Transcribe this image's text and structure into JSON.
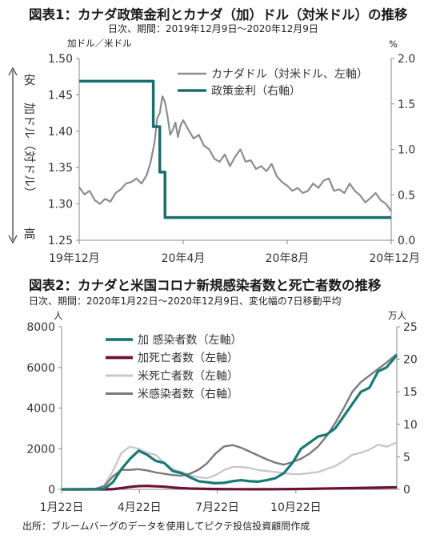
{
  "chart_data": [
    {
      "type": "line",
      "title": "図表1：カナダ政策金利とカナダ（加）ドル（対米ドル）の推移",
      "subtitle": "日次、期間：2019年12月9日～2020年12月9日",
      "left_unit": "加ドル／米ドル",
      "right_unit": "%",
      "y_side_label": "加ドル（対ドル）",
      "y_top_label": "安",
      "y_bottom_label": "高",
      "ylim_left": [
        1.25,
        1.5
      ],
      "ylim_right": [
        0.0,
        2.0
      ],
      "yticks_left": [
        "1.50",
        "1.45",
        "1.40",
        "1.35",
        "1.30",
        "1.25"
      ],
      "yticks_right": [
        "2.0",
        "1.5",
        "1.0",
        "0.5",
        "0.0"
      ],
      "x_tick_labels": [
        "19年12月",
        "20年4月",
        "20年8月",
        "20年12月"
      ],
      "x_ticks_month": [
        0,
        4,
        8,
        12
      ],
      "legend_placement": "top-right",
      "grid": false,
      "series": [
        {
          "name": "カナダドル（対米ドル、左軸）",
          "axis": "left",
          "color": "#8c8c8c",
          "x_month": [
            0.0,
            0.2,
            0.4,
            0.6,
            0.8,
            1.0,
            1.2,
            1.4,
            1.6,
            1.8,
            2.0,
            2.2,
            2.4,
            2.6,
            2.75,
            2.9,
            3.0,
            3.1,
            3.2,
            3.3,
            3.4,
            3.5,
            3.6,
            3.7,
            3.8,
            3.9,
            4.0,
            4.2,
            4.4,
            4.6,
            4.8,
            5.0,
            5.2,
            5.4,
            5.6,
            5.8,
            6.0,
            6.2,
            6.4,
            6.6,
            6.8,
            7.0,
            7.2,
            7.4,
            7.6,
            7.8,
            8.0,
            8.2,
            8.4,
            8.6,
            8.8,
            9.0,
            9.2,
            9.4,
            9.6,
            9.8,
            10.0,
            10.2,
            10.4,
            10.6,
            10.8,
            11.0,
            11.2,
            11.4,
            11.6,
            11.8,
            12.0
          ],
          "values": [
            1.323,
            1.313,
            1.318,
            1.305,
            1.3,
            1.307,
            1.303,
            1.315,
            1.32,
            1.328,
            1.33,
            1.335,
            1.328,
            1.34,
            1.358,
            1.385,
            1.418,
            1.425,
            1.448,
            1.44,
            1.42,
            1.395,
            1.402,
            1.412,
            1.392,
            1.408,
            1.415,
            1.402,
            1.39,
            1.395,
            1.38,
            1.375,
            1.362,
            1.358,
            1.368,
            1.352,
            1.365,
            1.375,
            1.358,
            1.36,
            1.348,
            1.352,
            1.345,
            1.355,
            1.338,
            1.33,
            1.325,
            1.318,
            1.322,
            1.315,
            1.318,
            1.328,
            1.322,
            1.332,
            1.335,
            1.318,
            1.32,
            1.315,
            1.328,
            1.318,
            1.312,
            1.302,
            1.308,
            1.315,
            1.305,
            1.3,
            1.29
          ]
        },
        {
          "name": "政策金利（右軸）",
          "axis": "right",
          "color": "#1b6e6e",
          "step": true,
          "x_month": [
            0.0,
            2.85,
            3.1,
            3.3,
            3.55,
            12.0
          ],
          "values": [
            1.75,
            1.25,
            0.75,
            0.25,
            0.25,
            0.25
          ]
        }
      ]
    },
    {
      "type": "line",
      "title": "図表2：カナダと米国コロナ新規感染者数と死亡者数の推移",
      "subtitle": "日次、期間：2020年1月22日～2020年12月9日、変化幅の7日移動平均",
      "left_unit": "人",
      "right_unit": "万人",
      "ylim_left": [
        0,
        8000
      ],
      "ylim_right": [
        0,
        25
      ],
      "yticks_left": [
        "8000",
        "6000",
        "4000",
        "2000",
        "0"
      ],
      "yticks_right": [
        "25",
        "20",
        "15",
        "10",
        "5",
        "0"
      ],
      "x_tick_labels": [
        "1月22日",
        "4月22日",
        "7月22日",
        "10月22日"
      ],
      "x_ticks_day": [
        0,
        91,
        182,
        274
      ],
      "legend_placement": "top-left",
      "grid": false,
      "series": [
        {
          "name": "加 感染者数（左軸）",
          "axis": "left",
          "color": "#1b7a76",
          "x_day": [
            0,
            20,
            40,
            50,
            60,
            70,
            80,
            90,
            100,
            110,
            120,
            130,
            140,
            150,
            160,
            170,
            180,
            190,
            200,
            210,
            220,
            230,
            240,
            250,
            260,
            270,
            280,
            290,
            300,
            310,
            320,
            330,
            340,
            350,
            360,
            370,
            380,
            392
          ],
          "values": [
            0,
            0,
            5,
            30,
            350,
            1000,
            1500,
            1900,
            1700,
            1400,
            1300,
            900,
            800,
            600,
            400,
            350,
            300,
            320,
            400,
            450,
            400,
            380,
            450,
            550,
            800,
            1300,
            2000,
            2300,
            2600,
            2700,
            3000,
            3600,
            4200,
            4800,
            5000,
            5800,
            6000,
            6600
          ]
        },
        {
          "name": "加死亡者数（左軸）",
          "axis": "left",
          "color": "#6b1237",
          "x_day": [
            0,
            50,
            60,
            70,
            80,
            90,
            100,
            110,
            120,
            130,
            140,
            150,
            170,
            190,
            210,
            230,
            250,
            270,
            290,
            310,
            330,
            350,
            370,
            392
          ],
          "values": [
            0,
            0,
            10,
            60,
            120,
            160,
            170,
            150,
            130,
            90,
            60,
            40,
            20,
            10,
            8,
            6,
            8,
            15,
            25,
            40,
            55,
            70,
            85,
            100
          ]
        },
        {
          "name": "米死亡者数（左軸）",
          "axis": "left",
          "color": "#c8c8c8",
          "x_day": [
            0,
            40,
            50,
            60,
            70,
            80,
            90,
            100,
            110,
            120,
            130,
            140,
            150,
            160,
            170,
            180,
            190,
            200,
            210,
            220,
            230,
            240,
            250,
            260,
            270,
            280,
            290,
            300,
            310,
            320,
            330,
            340,
            350,
            360,
            370,
            380,
            392
          ],
          "values": [
            0,
            0,
            200,
            900,
            1800,
            2100,
            2000,
            1800,
            1700,
            1300,
            1000,
            850,
            700,
            600,
            550,
            700,
            950,
            1100,
            1100,
            1050,
            950,
            900,
            850,
            800,
            750,
            750,
            800,
            850,
            1000,
            1150,
            1400,
            1700,
            1800,
            1950,
            2200,
            2100,
            2300
          ]
        },
        {
          "name": "米感染者数（右軸）",
          "axis": "right",
          "color": "#7a7a7a",
          "x_day": [
            0,
            40,
            50,
            60,
            70,
            80,
            90,
            100,
            110,
            120,
            130,
            140,
            150,
            160,
            170,
            180,
            190,
            200,
            210,
            220,
            230,
            240,
            250,
            260,
            270,
            280,
            290,
            300,
            310,
            320,
            330,
            340,
            350,
            360,
            370,
            380,
            392
          ],
          "values": [
            0,
            0.1,
            0.5,
            2.0,
            3.0,
            3.0,
            3.1,
            2.9,
            2.6,
            2.4,
            2.2,
            2.1,
            2.4,
            3.0,
            4.0,
            5.5,
            6.6,
            6.8,
            6.4,
            5.8,
            5.2,
            4.6,
            4.1,
            3.8,
            4.2,
            4.7,
            5.5,
            6.6,
            8.2,
            10.2,
            12.5,
            15.0,
            16.5,
            17.5,
            18.5,
            19.5,
            20.8
          ]
        }
      ]
    }
  ],
  "footer": {
    "source": "出所：ブルームバーグのデータを使用してピクテ投信投資顧問作成"
  }
}
